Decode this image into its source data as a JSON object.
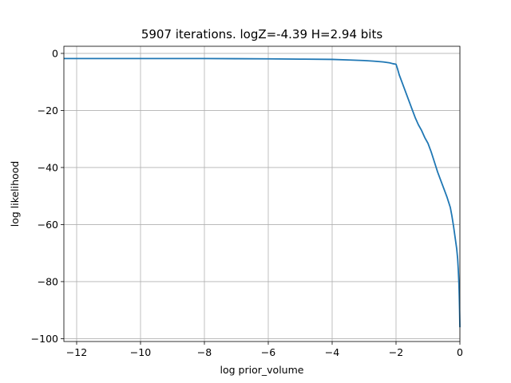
{
  "chart_data": {
    "type": "line",
    "title": "5907 iterations. logZ=-4.39 H=2.94 bits",
    "xlabel": "log prior_volume",
    "ylabel": "log likelihood",
    "xlim": [
      -12.4,
      0
    ],
    "ylim": [
      -101,
      2.5
    ],
    "xticks": [
      -12,
      -10,
      -8,
      -6,
      -4,
      -2,
      0
    ],
    "yticks": [
      0,
      -20,
      -40,
      -60,
      -80,
      -100
    ],
    "xtick_labels": [
      "−12",
      "−10",
      "−8",
      "−6",
      "−4",
      "−2",
      "0"
    ],
    "ytick_labels": [
      "0",
      "−20",
      "−40",
      "−60",
      "−80",
      "−100"
    ],
    "grid": true,
    "series_color": "#1f77b4",
    "series": [
      {
        "x": [
          -12.4,
          -11,
          -10,
          -9,
          -8,
          -7,
          -6,
          -5,
          -4,
          -3.5,
          -3,
          -2.7,
          -2.4,
          -2.2,
          -2.1,
          -2.0,
          -1.95,
          -1.9,
          -1.8,
          -1.7,
          -1.6,
          -1.5,
          -1.4,
          -1.3,
          -1.2,
          -1.1,
          -1.0,
          -0.9,
          -0.8,
          -0.7,
          -0.6,
          -0.5,
          -0.4,
          -0.3,
          -0.25,
          -0.2,
          -0.15,
          -0.1,
          -0.07,
          -0.05,
          -0.03,
          -0.02,
          -0.01,
          0
        ],
        "y": [
          -1.8,
          -1.8,
          -1.8,
          -1.8,
          -1.8,
          -1.85,
          -1.9,
          -2.0,
          -2.1,
          -2.3,
          -2.5,
          -2.7,
          -3.0,
          -3.3,
          -3.6,
          -3.8,
          -5.5,
          -7.5,
          -10.5,
          -13.5,
          -16.5,
          -19.5,
          -22.5,
          -25.0,
          -27.0,
          -29.5,
          -31.5,
          -34.5,
          -38.0,
          -41.5,
          -44.5,
          -47.5,
          -50.5,
          -54.0,
          -57.0,
          -60.5,
          -64.5,
          -68.5,
          -72.0,
          -76.0,
          -81.0,
          -85.0,
          -90.0,
          -96.0
        ]
      }
    ]
  }
}
